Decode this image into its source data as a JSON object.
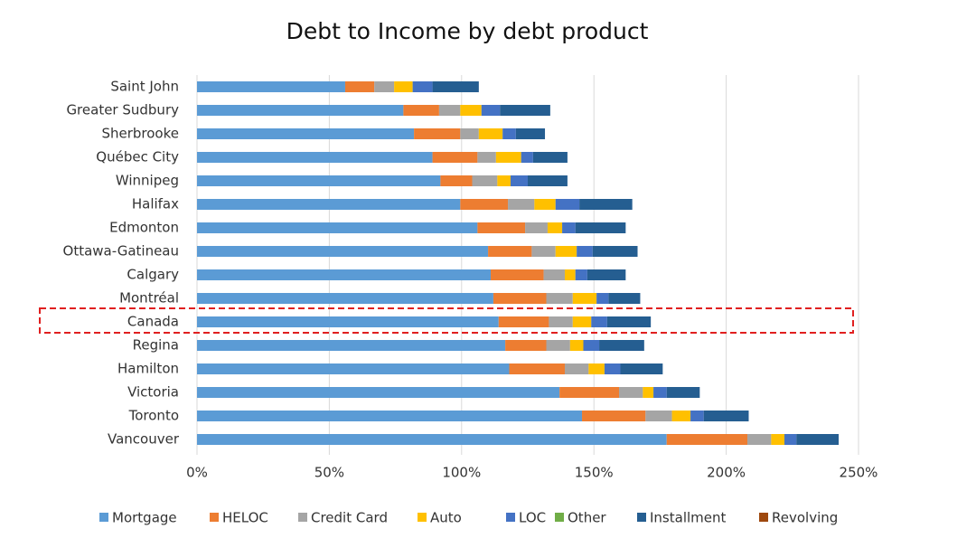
{
  "chart_data": {
    "type": "stacked-bar-horizontal",
    "title": "Debt to Income by debt product",
    "categories": [
      "Saint John",
      "Greater Sudbury",
      "Sherbrooke",
      "Québec City",
      "Winnipeg",
      "Halifax",
      "Edmonton",
      "Ottawa-Gatineau",
      "Calgary",
      "Montréal",
      "Canada",
      "Regina",
      "Hamilton",
      "Victoria",
      "Toronto",
      "Vancouver"
    ],
    "series": [
      {
        "name": "Mortgage",
        "color": "#5b9bd5",
        "values": [
          56,
          78,
          82,
          89,
          92,
          99.5,
          106,
          110,
          111,
          112,
          114,
          116.5,
          118,
          137,
          145.5,
          177.5
        ]
      },
      {
        "name": "HELOC",
        "color": "#ed7d31",
        "values": [
          11,
          13.5,
          17.5,
          17,
          12,
          18,
          18,
          16.5,
          20,
          20,
          19,
          15.5,
          21,
          22.5,
          24,
          30.5
        ]
      },
      {
        "name": "Credit Card",
        "color": "#a5a5a5",
        "values": [
          7.5,
          8,
          7,
          7,
          9.5,
          10,
          8.5,
          9,
          8,
          10,
          9,
          9,
          9,
          9,
          10,
          9
        ]
      },
      {
        "name": "Auto",
        "color": "#ffc000",
        "values": [
          7,
          8,
          9,
          9.5,
          5,
          8,
          5.5,
          8,
          4,
          9,
          7,
          5,
          6,
          4,
          7,
          5
        ]
      },
      {
        "name": "LOC",
        "color": "#4472c4",
        "values": [
          7.5,
          7,
          5,
          4.5,
          6.5,
          9,
          5,
          6,
          4.5,
          4.5,
          6,
          6,
          6,
          5,
          5,
          4.5
        ]
      },
      {
        "name": "Other",
        "color": "#70ad47",
        "values": [
          0,
          0,
          0,
          0,
          0,
          0,
          0,
          0,
          0,
          0,
          0,
          0,
          0,
          0,
          0,
          0
        ]
      },
      {
        "name": "Installment",
        "color": "#255e91",
        "values": [
          17.5,
          19,
          11,
          13,
          15,
          20,
          19,
          17,
          14.5,
          12,
          16.5,
          17,
          16,
          12.5,
          17,
          16
        ]
      },
      {
        "name": "Revolving",
        "color": "#9e480e",
        "values": [
          0,
          0,
          0,
          0,
          0,
          0,
          0,
          0,
          0,
          0,
          0,
          0,
          0,
          0,
          0,
          0
        ]
      }
    ],
    "xlim": [
      0,
      250
    ],
    "xticks": [
      {
        "value": 0,
        "label": "0%"
      },
      {
        "value": 50,
        "label": "50%"
      },
      {
        "value": 100,
        "label": "100%"
      },
      {
        "value": 150,
        "label": "150%"
      },
      {
        "value": 200,
        "label": "200%"
      },
      {
        "value": 250,
        "label": "250%"
      }
    ],
    "grid": true
  }
}
